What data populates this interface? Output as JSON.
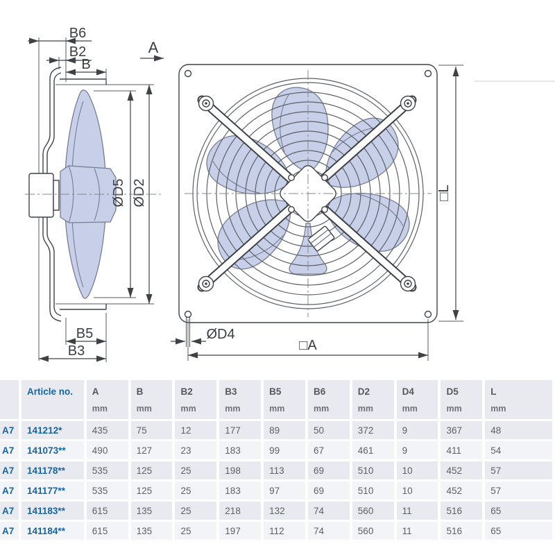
{
  "diagram": {
    "section_label": "A",
    "side_view": {
      "b6": "B6",
      "b2": "B2",
      "b": "B",
      "d5": "ØD5",
      "d2": "ØD2",
      "b5": "B5",
      "b3": "B3"
    },
    "front_view": {
      "l": "□L",
      "d4": "ØD4",
      "a": "□A"
    },
    "colors": {
      "line": "#3e4246",
      "blade_fill": "#c7cfe9",
      "blade_stroke": "#767d92",
      "grille": "#5c6065",
      "centerline": "#83878b"
    }
  },
  "table": {
    "columns": [
      {
        "label": "",
        "unit": ""
      },
      {
        "label": "Article no.",
        "unit": ""
      },
      {
        "label": "A",
        "unit": "mm"
      },
      {
        "label": "B",
        "unit": "mm"
      },
      {
        "label": "B2",
        "unit": "mm"
      },
      {
        "label": "B3",
        "unit": "mm"
      },
      {
        "label": "B5",
        "unit": "mm"
      },
      {
        "label": "B6",
        "unit": "mm"
      },
      {
        "label": "D2",
        "unit": "mm"
      },
      {
        "label": "D4",
        "unit": "mm"
      },
      {
        "label": "D5",
        "unit": "mm"
      },
      {
        "label": "L",
        "unit": "mm"
      }
    ],
    "rows": [
      {
        "type": "A7",
        "article": "141212*",
        "values": [
          "435",
          "75",
          "12",
          "177",
          "89",
          "50",
          "372",
          "9",
          "367",
          "48"
        ]
      },
      {
        "type": "A7",
        "article": "141073**",
        "values": [
          "490",
          "127",
          "23",
          "183",
          "99",
          "67",
          "461",
          "9",
          "411",
          "54"
        ]
      },
      {
        "type": "A7",
        "article": "141178**",
        "values": [
          "535",
          "125",
          "25",
          "198",
          "113",
          "69",
          "510",
          "10",
          "452",
          "57"
        ]
      },
      {
        "type": "A7",
        "article": "141177**",
        "values": [
          "535",
          "125",
          "25",
          "183",
          "97",
          "69",
          "510",
          "10",
          "452",
          "57"
        ]
      },
      {
        "type": "A7",
        "article": "141183**",
        "values": [
          "615",
          "135",
          "25",
          "218",
          "132",
          "74",
          "560",
          "11",
          "516",
          "65"
        ]
      },
      {
        "type": "A7",
        "article": "141184**",
        "values": [
          "615",
          "135",
          "25",
          "197",
          "112",
          "74",
          "560",
          "11",
          "516",
          "65"
        ]
      }
    ],
    "colors": {
      "accent": "#1565a8",
      "header_bg": "#e8eaf0",
      "row_odd_bg": "#e8eaf0",
      "row_even_bg": "#f3f4f8",
      "text": "#5d6165"
    }
  }
}
